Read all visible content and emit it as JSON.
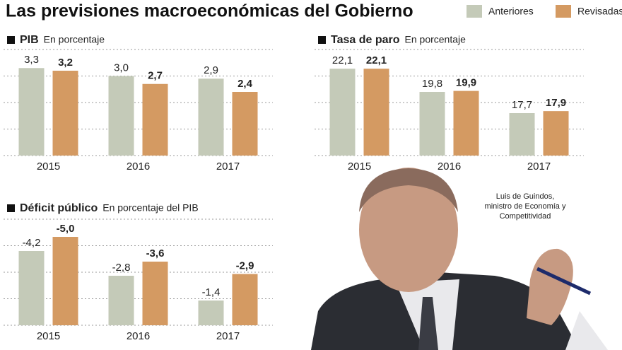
{
  "title": "Las previsiones macroeconómicas del Gobierno",
  "caption": [
    "Luis de Guindos,",
    "ministro de Economía y",
    "Competitividad"
  ],
  "chart_data": [
    {
      "type": "bar",
      "title": "PIB",
      "subtitle": "En porcentaje",
      "categories": [
        "2015",
        "2016",
        "2017"
      ],
      "series": [
        {
          "name": "Anteriores",
          "color": "#c4cab8",
          "values": [
            3.3,
            3.0,
            2.9
          ],
          "value_labels": [
            "3,3",
            "3,0",
            "2,9"
          ]
        },
        {
          "name": "Revisadas",
          "color": "#d49a62",
          "values": [
            3.2,
            2.7,
            2.4
          ],
          "value_labels": [
            "3,2",
            "2,7",
            "2,4"
          ]
        }
      ],
      "ylim": [
        0,
        4
      ],
      "grid": true
    },
    {
      "type": "bar",
      "title": "Tasa de paro",
      "subtitle": "En porcentaje",
      "categories": [
        "2015",
        "2016",
        "2017"
      ],
      "series": [
        {
          "name": "Anteriores",
          "color": "#c4cab8",
          "values": [
            22.1,
            19.8,
            17.7
          ],
          "value_labels": [
            "22,1",
            "19,8",
            "17,7"
          ]
        },
        {
          "name": "Revisadas",
          "color": "#d49a62",
          "values": [
            22.1,
            19.9,
            17.9
          ],
          "value_labels": [
            "22,1",
            "19,9",
            "17,9"
          ]
        }
      ],
      "ylim": [
        13.5,
        24
      ],
      "grid": true
    },
    {
      "type": "bar",
      "title": "Déficit público",
      "subtitle": "En porcentaje del PIB",
      "categories": [
        "2015",
        "2016",
        "2017"
      ],
      "series": [
        {
          "name": "Anteriores",
          "color": "#c4cab8",
          "values": [
            -4.2,
            -2.8,
            -1.4
          ],
          "value_labels": [
            "-4,2",
            "-2,8",
            "-1,4"
          ]
        },
        {
          "name": "Revisadas",
          "color": "#d49a62",
          "values": [
            -5.0,
            -3.6,
            -2.9
          ],
          "value_labels": [
            "-5,0",
            "-3,6",
            "-2,9"
          ]
        }
      ],
      "ylim": [
        0,
        -6
      ],
      "grid": true
    }
  ]
}
